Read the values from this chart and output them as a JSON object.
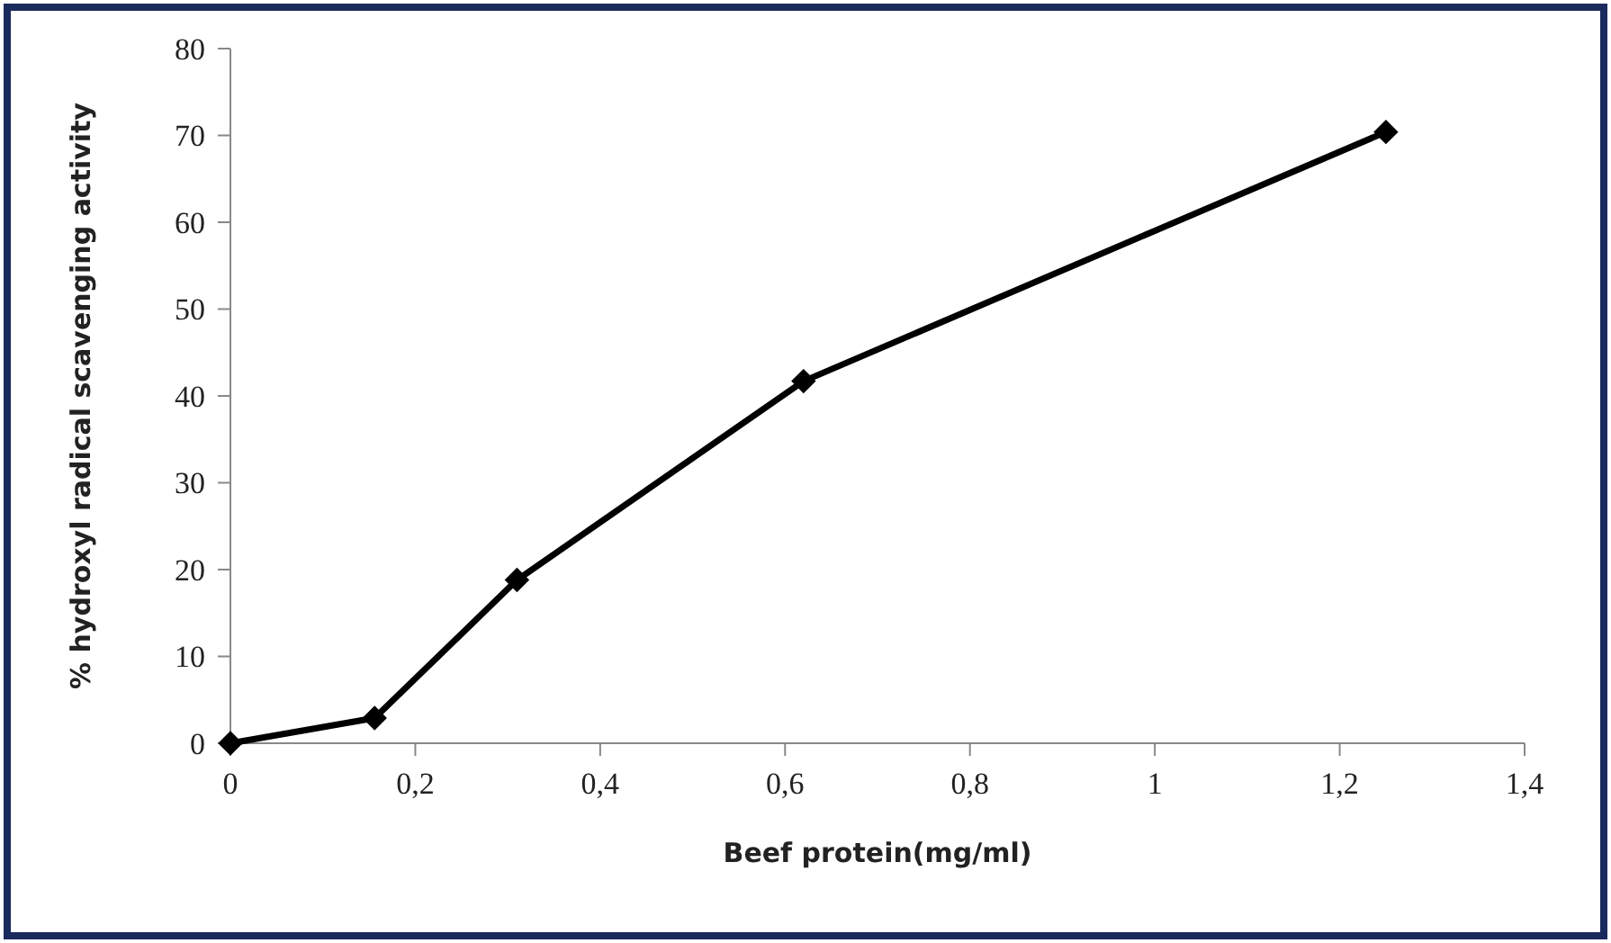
{
  "chart_data": {
    "type": "line",
    "xlabel": "Beef protein(mg/ml)",
    "ylabel": "% hydroxyl radical scavenging activity",
    "x": [
      0,
      0.156,
      0.31,
      0.62,
      1.25
    ],
    "series": [
      {
        "color": "#000000",
        "values": [
          0,
          2.9,
          18.8,
          41.7,
          70.4
        ]
      }
    ],
    "xlim": [
      0,
      1.4
    ],
    "xticks": [
      0,
      {
        "value": 0.2,
        "label": "0,2"
      },
      {
        "value": 0.4,
        "label": "0,4"
      },
      {
        "value": 0.6,
        "label": "0,6"
      },
      {
        "value": 0.8,
        "label": "0,8"
      },
      1,
      {
        "value": 1.2,
        "label": "1,2"
      },
      {
        "value": 1.4,
        "label": "1,4"
      }
    ],
    "ylim": [
      0,
      80
    ],
    "yticks": [
      0,
      10,
      20,
      30,
      40,
      50,
      60,
      70,
      80
    ],
    "marker": "diamond",
    "line_style": "solid"
  }
}
